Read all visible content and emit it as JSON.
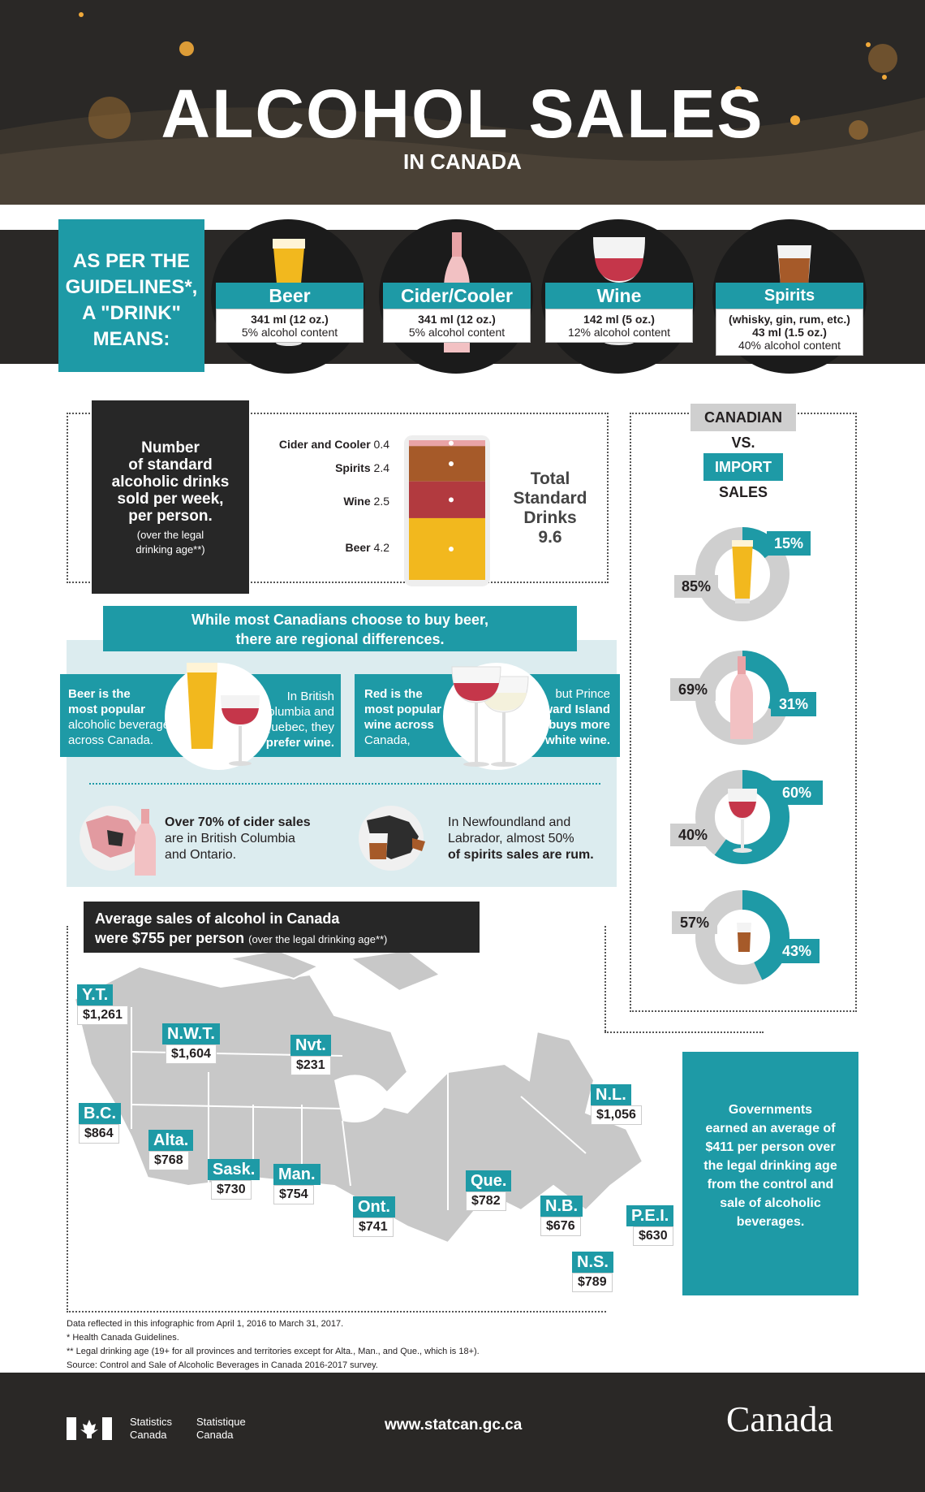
{
  "header": {
    "title": "ALCOHOL SALES",
    "subtitle": "IN CANADA"
  },
  "guidelines": {
    "line1": "AS PER THE",
    "line2": "GUIDELINES*,",
    "line3": "A \"DRINK\"",
    "line4": "MEANS:",
    "drinks": [
      {
        "name": "Beer",
        "size": "341 ml (12 oz.)",
        "content": "5% alcohol content"
      },
      {
        "name": "Cider/Cooler",
        "size": "341 ml (12 oz.)",
        "content": "5% alcohol content"
      },
      {
        "name": "Wine",
        "size": "142 ml (5 oz.)",
        "content": "12% alcohol content"
      },
      {
        "name": "Spirits",
        "examples": "(whisky, gin, rum, etc.)",
        "size": "43 ml (1.5 oz.)",
        "content": "40% alcohol content"
      }
    ]
  },
  "weekly": {
    "label_l1": "Number",
    "label_l2": "of standard",
    "label_l3": "alcoholic drinks",
    "label_l4": "sold per week,",
    "label_l5": "per person.",
    "note_l1": "(over the legal",
    "note_l2": "drinking age**)",
    "segments": [
      {
        "name": "Cider and Cooler",
        "value": "0.4",
        "v": 0.4,
        "color": "#e9a3a6"
      },
      {
        "name": "Spirits",
        "value": "2.4",
        "v": 2.4,
        "color": "#a65a29"
      },
      {
        "name": "Wine",
        "value": "2.5",
        "v": 2.5,
        "color": "#b23a3f"
      },
      {
        "name": "Beer",
        "value": "4.2",
        "v": 4.2,
        "color": "#f2b81e"
      }
    ],
    "total_l1": "Total",
    "total_l2": "Standard",
    "total_l3": "Drinks",
    "total_value": "9.6"
  },
  "canadian_vs_import": {
    "title": "CANADIAN",
    "vs": "VS.",
    "import": "IMPORT",
    "sales": "SALES",
    "items": [
      {
        "drink": "beer",
        "canadian": "85%",
        "import": "15%",
        "canadian_share": 0.85
      },
      {
        "drink": "cider",
        "canadian": "69%",
        "import": "31%",
        "canadian_share": 0.69
      },
      {
        "drink": "wine",
        "canadian": "40%",
        "import": "60%",
        "canadian_share": 0.4
      },
      {
        "drink": "spirits",
        "canadian": "57%",
        "import": "43%",
        "canadian_share": 0.57
      }
    ]
  },
  "regional": {
    "banner_l1": "While most Canadians choose to buy beer,",
    "banner_l2": "there are regional differences.",
    "beer_l1": "Beer is the",
    "beer_l2": "most popular",
    "beer_l3": "alcoholic beverage",
    "beer_l4": "across Canada.",
    "bc_l1": "In British",
    "bc_l2": "Columbia and",
    "bc_l3": "Quebec, they",
    "bc_l4": "prefer wine.",
    "red_l1": "Red is the",
    "red_l2": "most popular",
    "red_l3": "wine across",
    "red_l4": "Canada,",
    "pei_l1": "but Prince",
    "pei_l2": "Edward Island",
    "pei_l3": "buys more",
    "pei_l4": "white wine.",
    "cider_l1": "Over 70% of cider sales",
    "cider_l2": "are in British Columbia",
    "cider_l3": "and Ontario.",
    "nl_l1": "In Newfoundland and",
    "nl_l2": "Labrador, almost 50%",
    "nl_l3": "of spirits sales are rum."
  },
  "map": {
    "banner_l1": "Average sales of alcohol in Canada",
    "banner_l2": "were $755 per person",
    "banner_note": "(over the legal drinking age**)",
    "provinces": [
      {
        "name": "Y.T.",
        "value": "$1,261"
      },
      {
        "name": "N.W.T.",
        "value": "$1,604"
      },
      {
        "name": "Nvt.",
        "value": "$231"
      },
      {
        "name": "B.C.",
        "value": "$864"
      },
      {
        "name": "Alta.",
        "value": "$768"
      },
      {
        "name": "Sask.",
        "value": "$730"
      },
      {
        "name": "Man.",
        "value": "$754"
      },
      {
        "name": "Ont.",
        "value": "$741"
      },
      {
        "name": "Que.",
        "value": "$782"
      },
      {
        "name": "N.L.",
        "value": "$1,056"
      },
      {
        "name": "N.B.",
        "value": "$676"
      },
      {
        "name": "P.E.I.",
        "value": "$630"
      },
      {
        "name": "N.S.",
        "value": "$789"
      }
    ],
    "gov_l1": "Governments",
    "gov_l2": "earned an average of",
    "gov_l3": "$411 per person over",
    "gov_l4": "the legal drinking age",
    "gov_l5": "from the control and",
    "gov_l6": "sale of alcoholic",
    "gov_l7": "beverages."
  },
  "footnotes": {
    "l1": "Data reflected in this infographic from April 1, 2016 to March 31, 2017.",
    "l2": "* Health Canada Guidelines.",
    "l3": "** Legal drinking age (19+ for all provinces and territories except for Alta., Man., and Que., which is 18+).",
    "l4": "Source: Control and Sale of Alcoholic Beverages in Canada 2016-2017 survey."
  },
  "footer": {
    "stat_en_l1": "Statistics",
    "stat_en_l2": "Canada",
    "stat_fr_l1": "Statistique",
    "stat_fr_l2": "Canada",
    "url": "www.statcan.gc.ca",
    "wordmark": "Canada"
  },
  "colors": {
    "teal": "#1e9aa6",
    "dark": "#2a2826",
    "grey": "#cfcfcf",
    "beer": "#f2b81e",
    "wine": "#b23a3f",
    "spirits": "#a65a29",
    "cider": "#e9a3a6"
  }
}
